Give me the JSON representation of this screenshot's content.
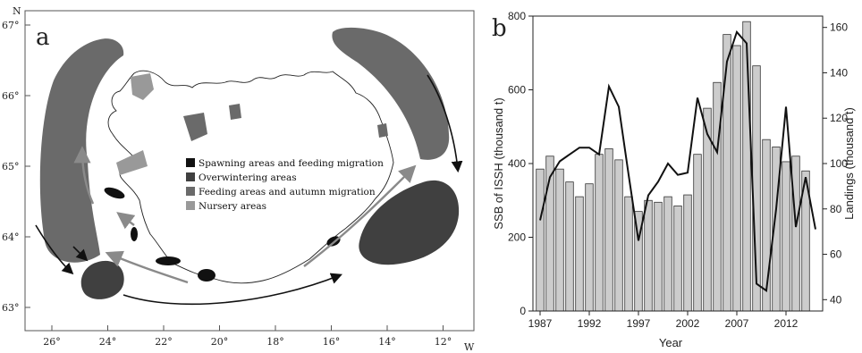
{
  "panel_a": {
    "label": "a",
    "north_label": "N",
    "west_label": "W",
    "lat_ticks": [
      "67°",
      "66°",
      "65°",
      "64°",
      "63°"
    ],
    "lon_ticks": [
      "26°",
      "24°",
      "22°",
      "20°",
      "18°",
      "16°",
      "14°",
      "12°"
    ],
    "legend": [
      {
        "label": "Spawning areas and feeding migration",
        "color": "#111111"
      },
      {
        "label": "Overwintering areas",
        "color": "#404040"
      },
      {
        "label": "Feeding areas and autumn migration",
        "color": "#6a6a6a"
      },
      {
        "label": "Nursery areas",
        "color": "#999999"
      }
    ]
  },
  "panel_b": {
    "label": "b"
  },
  "chart_data": {
    "type": "bar",
    "xlabel": "Year",
    "ylabel": "SSB of ISSH (thousand t)",
    "y2label": "Landings (thousand t)",
    "x_ticks": [
      1987,
      1992,
      1997,
      2002,
      2007,
      2012
    ],
    "categories": [
      1987,
      1988,
      1989,
      1990,
      1991,
      1992,
      1993,
      1994,
      1995,
      1996,
      1997,
      1998,
      1999,
      2000,
      2001,
      2002,
      2003,
      2004,
      2005,
      2006,
      2007,
      2008,
      2009,
      2010,
      2011,
      2012,
      2013,
      2014,
      2015
    ],
    "ylim": [
      0,
      800
    ],
    "y_ticks": [
      0,
      200,
      400,
      600,
      800
    ],
    "y2lim": [
      35,
      165
    ],
    "y2_ticks": [
      40,
      60,
      80,
      100,
      120,
      140,
      160
    ],
    "grid": false,
    "series": [
      {
        "kind": "bar",
        "axis": "left",
        "values": [
          385,
          420,
          385,
          350,
          310,
          345,
          425,
          440,
          410,
          310,
          270,
          300,
          295,
          310,
          285,
          315,
          425,
          550,
          620,
          750,
          720,
          785,
          665,
          465,
          445,
          405,
          420,
          380,
          0
        ]
      },
      {
        "kind": "line",
        "axis": "right",
        "values": [
          75,
          94,
          101,
          104,
          107,
          107,
          104,
          134,
          125,
          95,
          66,
          86,
          92,
          100,
          95,
          96,
          129,
          113,
          105,
          145,
          158,
          153,
          47,
          44,
          80,
          125,
          72,
          94,
          71
        ]
      }
    ]
  }
}
